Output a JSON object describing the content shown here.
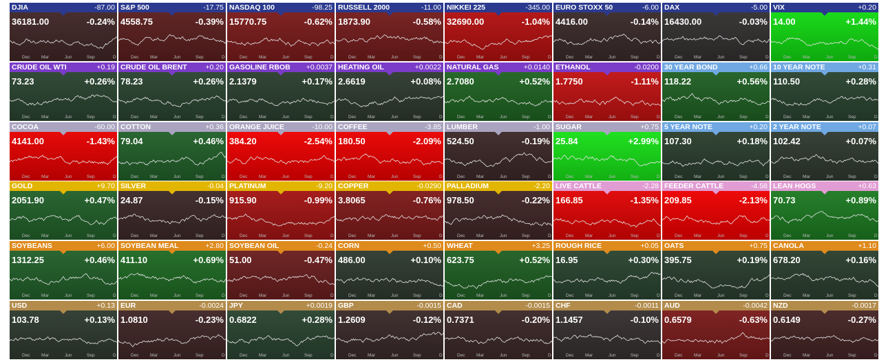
{
  "axis_labels": [
    "Dec",
    "Mar",
    "Jun",
    "Sep",
    "D"
  ],
  "tiles": [
    {
      "name": "DJIA",
      "change": "-87.00",
      "price": "36181.00",
      "percent": "-0.24%",
      "header_color": "#2b3a8f",
      "body_color": "#402626"
    },
    {
      "name": "S&P 500",
      "change": "-17.75",
      "price": "4558.75",
      "percent": "-0.39%",
      "header_color": "#2b3a8f",
      "body_color": "#5a1e1e"
    },
    {
      "name": "NASDAQ 100",
      "change": "-98.25",
      "price": "15770.75",
      "percent": "-0.62%",
      "header_color": "#2b3a8f",
      "body_color": "#7a1b1b"
    },
    {
      "name": "RUSSELL 2000",
      "change": "-11.00",
      "price": "1873.90",
      "percent": "-0.58%",
      "header_color": "#2b3a8f",
      "body_color": "#731c1c"
    },
    {
      "name": "NIKKEI 225",
      "change": "-345.00",
      "price": "32690.00",
      "percent": "-1.04%",
      "header_color": "#2b3a8f",
      "body_color": "#b21010"
    },
    {
      "name": "EURO STOXX 50",
      "change": "-6.00",
      "price": "4416.00",
      "percent": "-0.14%",
      "header_color": "#2b3a8f",
      "body_color": "#3a2a2a"
    },
    {
      "name": "DAX",
      "change": "-5.00",
      "price": "16430.00",
      "percent": "-0.03%",
      "header_color": "#2b3a8f",
      "body_color": "#333030"
    },
    {
      "name": "VIX",
      "change": "+0.20",
      "price": "14.00",
      "percent": "+1.44%",
      "header_color": "#2b3a8f",
      "body_color": "#12d812"
    },
    {
      "name": "CRUDE OIL WTI",
      "change": "+0.19",
      "price": "73.23",
      "percent": "+0.26%",
      "header_color": "#7b3cc8",
      "body_color": "#2a4430"
    },
    {
      "name": "CRUDE OIL BRENT",
      "change": "+0.20",
      "price": "78.23",
      "percent": "+0.26%",
      "header_color": "#7b3cc8",
      "body_color": "#2a4430"
    },
    {
      "name": "GASOLINE RBOB",
      "change": "+0.0037",
      "price": "2.1379",
      "percent": "+0.17%",
      "header_color": "#7b3cc8",
      "body_color": "#2b3f2e"
    },
    {
      "name": "HEATING OIL",
      "change": "+0.0022",
      "price": "2.6619",
      "percent": "+0.08%",
      "header_color": "#7b3cc8",
      "body_color": "#2e3a2f"
    },
    {
      "name": "NATURAL GAS",
      "change": "+0.0140",
      "price": "2.7080",
      "percent": "+0.52%",
      "header_color": "#7b3cc8",
      "body_color": "#1f6322"
    },
    {
      "name": "ETHANOL",
      "change": "-0.0200",
      "price": "1.7750",
      "percent": "-1.11%",
      "header_color": "#7b3cc8",
      "body_color": "#c01212"
    },
    {
      "name": "30 YEAR BOND",
      "change": "+0.66",
      "price": "118.22",
      "percent": "+0.56%",
      "header_color": "#6fa8e2",
      "body_color": "#206024"
    },
    {
      "name": "10 YEAR NOTE",
      "change": "+0.31",
      "price": "110.50",
      "percent": "+0.28%",
      "header_color": "#6fa8e2",
      "body_color": "#2a4430"
    },
    {
      "name": "COCOA",
      "change": "-60.00",
      "price": "4141.00",
      "percent": "-1.43%",
      "header_color": "#aaa4c0",
      "body_color": "#e60000"
    },
    {
      "name": "COTTON",
      "change": "+0.36",
      "price": "79.04",
      "percent": "+0.46%",
      "header_color": "#aaa4c0",
      "body_color": "#22602a"
    },
    {
      "name": "ORANGE JUICE",
      "change": "-10.00",
      "price": "384.20",
      "percent": "-2.54%",
      "header_color": "#aaa4c0",
      "body_color": "#ee0000"
    },
    {
      "name": "COFFEE",
      "change": "-3.85",
      "price": "180.50",
      "percent": "-2.09%",
      "header_color": "#aaa4c0",
      "body_color": "#ea0000"
    },
    {
      "name": "LUMBER",
      "change": "-1.00",
      "price": "524.50",
      "percent": "-0.19%",
      "header_color": "#aaa4c0",
      "body_color": "#3c2828"
    },
    {
      "name": "SUGAR",
      "change": "+0.75",
      "price": "25.84",
      "percent": "+2.99%",
      "header_color": "#aaa4c0",
      "body_color": "#18e018"
    },
    {
      "name": "5 YEAR NOTE",
      "change": "+0.20",
      "price": "107.30",
      "percent": "+0.18%",
      "header_color": "#6fa8e2",
      "body_color": "#2b3f2e"
    },
    {
      "name": "2 YEAR NOTE",
      "change": "+0.07",
      "price": "102.42",
      "percent": "+0.07%",
      "header_color": "#6fa8e2",
      "body_color": "#2f3a30"
    },
    {
      "name": "GOLD",
      "change": "+9.70",
      "price": "2051.90",
      "percent": "+0.47%",
      "header_color": "#e2b500",
      "body_color": "#22602a"
    },
    {
      "name": "SILVER",
      "change": "-0.04",
      "price": "24.87",
      "percent": "-0.15%",
      "header_color": "#e2b500",
      "body_color": "#3c2828"
    },
    {
      "name": "PLATINUM",
      "change": "-9.20",
      "price": "915.90",
      "percent": "-0.99%",
      "header_color": "#e2b500",
      "body_color": "#a31414"
    },
    {
      "name": "COPPER",
      "change": "-0.0290",
      "price": "3.8065",
      "percent": "-0.76%",
      "header_color": "#e2b500",
      "body_color": "#7e1a1a"
    },
    {
      "name": "PALLADIUM",
      "change": "-2.20",
      "price": "978.50",
      "percent": "-0.22%",
      "header_color": "#e2b500",
      "body_color": "#402626"
    },
    {
      "name": "LIVE CATTLE",
      "change": "-2.28",
      "price": "166.85",
      "percent": "-1.35%",
      "header_color": "#e09cd3",
      "body_color": "#e00404"
    },
    {
      "name": "FEEDER CATTLE",
      "change": "-4.58",
      "price": "209.85",
      "percent": "-2.13%",
      "header_color": "#e09cd3",
      "body_color": "#ee0000"
    },
    {
      "name": "LEAN HOGS",
      "change": "+0.63",
      "price": "70.73",
      "percent": "+0.89%",
      "header_color": "#e09cd3",
      "body_color": "#1d7a22"
    },
    {
      "name": "SOYBEANS",
      "change": "+6.00",
      "price": "1312.25",
      "percent": "+0.46%",
      "header_color": "#de8a1c",
      "body_color": "#22602a"
    },
    {
      "name": "SOYBEAN MEAL",
      "change": "+2.80",
      "price": "411.10",
      "percent": "+0.69%",
      "header_color": "#de8a1c",
      "body_color": "#1f6a24"
    },
    {
      "name": "SOYBEAN OIL",
      "change": "-0.24",
      "price": "51.00",
      "percent": "-0.47%",
      "header_color": "#de8a1c",
      "body_color": "#6a1e1e"
    },
    {
      "name": "CORN",
      "change": "+0.50",
      "price": "486.00",
      "percent": "+0.10%",
      "header_color": "#de8a1c",
      "body_color": "#2e3a2f"
    },
    {
      "name": "WHEAT",
      "change": "+3.25",
      "price": "623.75",
      "percent": "+0.52%",
      "header_color": "#de8a1c",
      "body_color": "#206024"
    },
    {
      "name": "ROUGH RICE",
      "change": "+0.05",
      "price": "16.95",
      "percent": "+0.30%",
      "header_color": "#de8a1c",
      "body_color": "#2a4430"
    },
    {
      "name": "OATS",
      "change": "+0.75",
      "price": "395.75",
      "percent": "+0.19%",
      "header_color": "#de8a1c",
      "body_color": "#2b3f2e"
    },
    {
      "name": "CANOLA",
      "change": "+1.10",
      "price": "678.20",
      "percent": "+0.16%",
      "header_color": "#de8a1c",
      "body_color": "#2b3f2e"
    },
    {
      "name": "USD",
      "change": "+0.13",
      "price": "103.78",
      "percent": "+0.13%",
      "header_color": "#b38c4c",
      "body_color": "#2e3a2f"
    },
    {
      "name": "EUR",
      "change": "-0.0024",
      "price": "1.0810",
      "percent": "-0.23%",
      "header_color": "#b38c4c",
      "body_color": "#402626"
    },
    {
      "name": "JPY",
      "change": "+0.0019",
      "price": "0.6822",
      "percent": "+0.28%",
      "header_color": "#b38c4c",
      "body_color": "#2a4430"
    },
    {
      "name": "GBP",
      "change": "-0.0015",
      "price": "1.2609",
      "percent": "-0.12%",
      "header_color": "#b38c4c",
      "body_color": "#3a2a2a"
    },
    {
      "name": "CAD",
      "change": "-0.0015",
      "price": "0.7371",
      "percent": "-0.20%",
      "header_color": "#b38c4c",
      "body_color": "#3c2828"
    },
    {
      "name": "CHF",
      "change": "-0.0011",
      "price": "1.1457",
      "percent": "-0.10%",
      "header_color": "#b38c4c",
      "body_color": "#363030"
    },
    {
      "name": "AUD",
      "change": "-0.0042",
      "price": "0.6579",
      "percent": "-0.63%",
      "header_color": "#b38c4c",
      "body_color": "#7a1b1b"
    },
    {
      "name": "NZD",
      "change": "-0.0017",
      "price": "0.6149",
      "percent": "-0.27%",
      "header_color": "#b38c4c",
      "body_color": "#442424"
    }
  ]
}
